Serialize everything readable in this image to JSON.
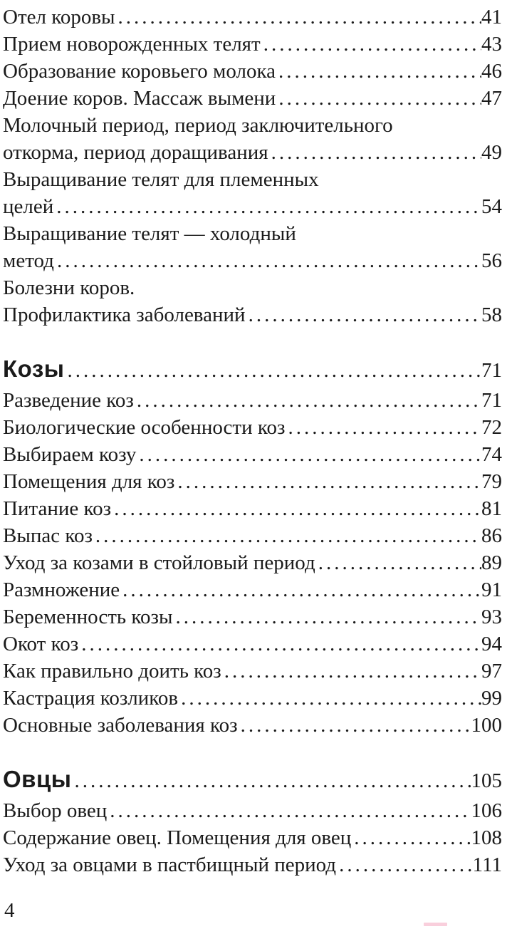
{
  "page": {
    "number_label": "4",
    "background_color": "#ffffff",
    "text_color": "#1b1b1b",
    "artifact_color": "#f9cfdc"
  },
  "toc": {
    "sections": [
      {
        "heading": null,
        "entries": [
          {
            "lines": [
              "Отел коровы"
            ],
            "page": "41"
          },
          {
            "lines": [
              "Прием новорожденных телят"
            ],
            "page": "43"
          },
          {
            "lines": [
              "Образование коровьего молока"
            ],
            "page": "46"
          },
          {
            "lines": [
              "Доение коров. Массаж вымени"
            ],
            "page": "47"
          },
          {
            "lines": [
              "Молочный период, период заключительного",
              "откорма, период доращивания"
            ],
            "page": "49"
          },
          {
            "lines": [
              "Выращивание телят для племенных",
              "целей"
            ],
            "page": "54"
          },
          {
            "lines": [
              "Выращивание телят — холодный",
              "метод"
            ],
            "page": "56"
          },
          {
            "lines": [
              "Болезни коров.",
              "Профилактика заболеваний"
            ],
            "page": "58"
          }
        ]
      },
      {
        "heading": {
          "label": "Козы",
          "page": "71"
        },
        "entries": [
          {
            "lines": [
              "Разведение коз"
            ],
            "page": "71"
          },
          {
            "lines": [
              "Биологические особенности коз"
            ],
            "page": "72"
          },
          {
            "lines": [
              "Выбираем козу"
            ],
            "page": "74"
          },
          {
            "lines": [
              "Помещения для коз"
            ],
            "page": "79"
          },
          {
            "lines": [
              "Питание коз"
            ],
            "page": "81"
          },
          {
            "lines": [
              "Выпас коз"
            ],
            "page": "86"
          },
          {
            "lines": [
              "Уход за козами в стойловый период"
            ],
            "page": "89"
          },
          {
            "lines": [
              "Размножение"
            ],
            "page": "91"
          },
          {
            "lines": [
              "Беременность козы"
            ],
            "page": "93"
          },
          {
            "lines": [
              "Окот коз"
            ],
            "page": "94"
          },
          {
            "lines": [
              "Как правильно доить коз"
            ],
            "page": "97"
          },
          {
            "lines": [
              "Кастрация козликов"
            ],
            "page": "99"
          },
          {
            "lines": [
              "Основные заболевания коз"
            ],
            "page": "100"
          }
        ]
      },
      {
        "heading": {
          "label": "Овцы",
          "page": "105"
        },
        "entries": [
          {
            "lines": [
              "Выбор овец"
            ],
            "page": "106"
          },
          {
            "lines": [
              "Содержание овец. Помещения для овец"
            ],
            "page": "108"
          },
          {
            "lines": [
              "Уход за овцами в пастбищный период"
            ],
            "page": "111"
          }
        ]
      }
    ]
  }
}
